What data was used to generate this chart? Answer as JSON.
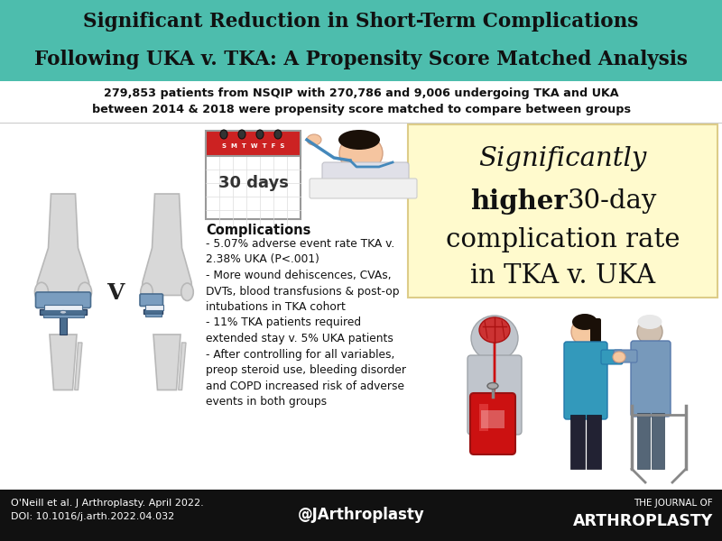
{
  "title_line1": "Significant Reduction in Short-Term Complications",
  "title_line2": "Following UKA v. TKA: A Propensity Score Matched Analysis",
  "title_bg": "#4dbdad",
  "title_color": "#111111",
  "subtitle_line1": "279,853 patients from NSQIP with 270,786 and 9,006 undergoing TKA and UKA",
  "subtitle_line2": "between 2014 & 2018 were propensity score matched to compare between groups",
  "subtitle_color": "#111111",
  "highlight_box_bg": "#fffacd",
  "complications_title": "Complications",
  "complications_text": "- 5.07% adverse event rate TKA v.\n2.38% UKA (P<.001)\n- More wound dehiscences, CVAs,\nDVTs, blood transfusions & post-op\nintubations in TKA cohort\n- 11% TKA patients required\nextended stay v. 5% UKA patients\n- After controlling for all variables,\npreop steroid use, bleeding disorder\nand COPD increased risk of adverse\nevents in both groups",
  "calendar_text": "30 days",
  "footer_bg": "#111111",
  "footer_color": "#ffffff",
  "footer_left": "O'Neill et al. J Arthroplasty. April 2022.\nDOI: 10.1016/j.arth.2022.04.032",
  "footer_center": "@JArthroplasty",
  "footer_right_small": "THE JOURNAL OF",
  "footer_right_large": "ARTHROPLASTY",
  "body_bg": "#ffffff",
  "bone_color": "#d8d8d8",
  "bone_edge": "#b8b8b8",
  "implant_blue": "#7a9dbf",
  "implant_dark": "#4a6d8f"
}
